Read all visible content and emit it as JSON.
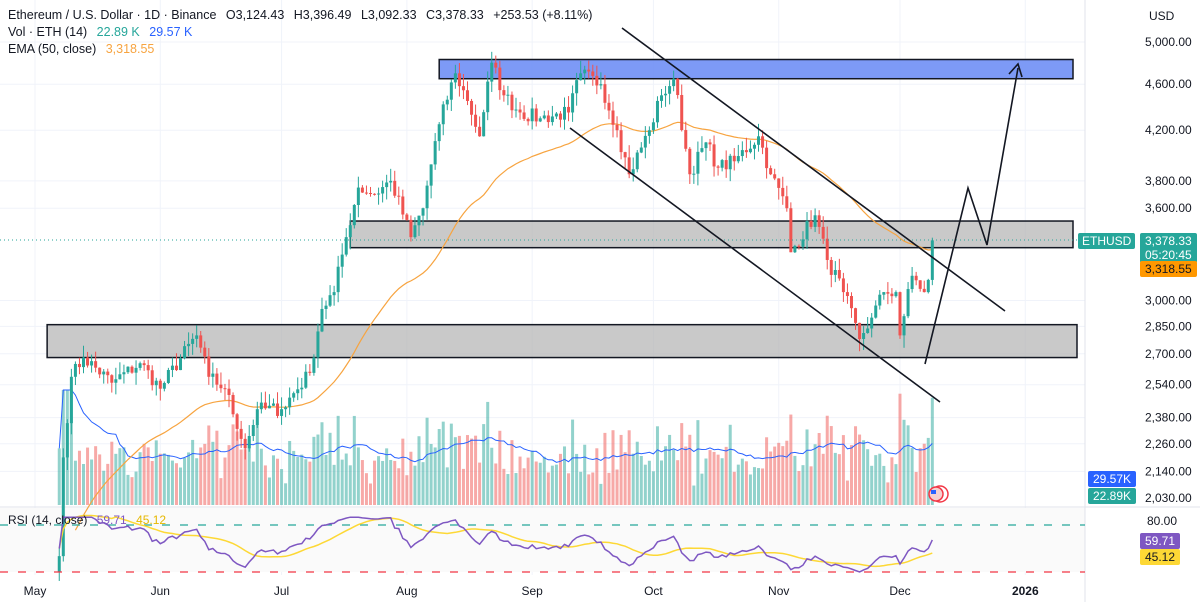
{
  "header": {
    "symbol_line": "Ethereum / U.S. Dollar · 1D · Binance",
    "open": "O3,124.43",
    "high": "H3,396.49",
    "low": "L3,092.33",
    "close": "C3,378.33",
    "change": "+253.53 (+8.11%)",
    "vol_label": "Vol · ETH (14)",
    "vol_value": "22.89 K",
    "vol_ma_value": "29.57 K",
    "ema_label": "EMA (50, close)",
    "ema_value": "3,318.55",
    "currency": "USD"
  },
  "price_tags": {
    "symbol": "ETHUSD",
    "last": "3,378.33",
    "countdown": "05:20:45",
    "ema": "3,318.55",
    "vol_ma": "29.57K",
    "vol": "22.89K",
    "rsi": "59.71",
    "rsi_ma": "45.12"
  },
  "rsi": {
    "label": "RSI (14, close)",
    "upper": "80.00",
    "upper_level": 80,
    "lower_level": 20
  },
  "colors": {
    "up": "#26a69a",
    "down": "#ef5350",
    "ema": "#f7a440",
    "vol_ma": "#2962ff",
    "rsi": "#7e57c2",
    "rsi_ma": "#fdd835",
    "zone_top": "#6f8ff5",
    "zone_gray": "#b2b2b2"
  },
  "chart_data": {
    "type": "candlestick",
    "scale": "log",
    "ylim": [
      2030,
      5000
    ],
    "y_ticks": [
      "5,000.00",
      "4,600.00",
      "4,200.00",
      "3,800.00",
      "3,600.00",
      "3,000.00",
      "2,850.00",
      "2,700.00",
      "2,540.00",
      "2,380.00",
      "2,260.00",
      "2,140.00",
      "2,030.00"
    ],
    "y_tick_values": [
      5000,
      4600,
      4200,
      3800,
      3600,
      3000,
      2850,
      2700,
      2540,
      2380,
      2260,
      2140,
      2030
    ],
    "x_ticks": [
      "May",
      "Jun",
      "Jul",
      "Aug",
      "Sep",
      "Oct",
      "Nov",
      "Dec",
      "2026"
    ],
    "x_tick_dates": [
      "2025-05-01",
      "2025-06-01",
      "2025-07-01",
      "2025-08-01",
      "2025-09-01",
      "2025-10-01",
      "2025-11-01",
      "2025-12-01",
      "2026-01-01"
    ],
    "grid": true,
    "close_anchors": [
      [
        "2025-05-07",
        1810
      ],
      [
        "2025-05-08",
        2200
      ],
      [
        "2025-05-10",
        2580
      ],
      [
        "2025-05-13",
        2680
      ],
      [
        "2025-05-20",
        2550
      ],
      [
        "2025-05-27",
        2650
      ],
      [
        "2025-06-01",
        2520
      ],
      [
        "2025-06-10",
        2800
      ],
      [
        "2025-06-13",
        2580
      ],
      [
        "2025-06-17",
        2520
      ],
      [
        "2025-06-22",
        2240
      ],
      [
        "2025-06-25",
        2420
      ],
      [
        "2025-07-01",
        2420
      ],
      [
        "2025-07-08",
        2600
      ],
      [
        "2025-07-11",
        2950
      ],
      [
        "2025-07-14",
        3050
      ],
      [
        "2025-07-17",
        3400
      ],
      [
        "2025-07-20",
        3750
      ],
      [
        "2025-07-24",
        3700
      ],
      [
        "2025-07-28",
        3800
      ],
      [
        "2025-08-02",
        3400
      ],
      [
        "2025-08-05",
        3600
      ],
      [
        "2025-08-09",
        4250
      ],
      [
        "2025-08-13",
        4700
      ],
      [
        "2025-08-16",
        4450
      ],
      [
        "2025-08-19",
        4150
      ],
      [
        "2025-08-22",
        4800
      ],
      [
        "2025-08-25",
        4500
      ],
      [
        "2025-08-29",
        4350
      ],
      [
        "2025-09-03",
        4300
      ],
      [
        "2025-09-10",
        4350
      ],
      [
        "2025-09-13",
        4700
      ],
      [
        "2025-09-18",
        4600
      ],
      [
        "2025-09-22",
        4200
      ],
      [
        "2025-09-25",
        3850
      ],
      [
        "2025-09-30",
        4200
      ],
      [
        "2025-10-03",
        4500
      ],
      [
        "2025-10-06",
        4650
      ],
      [
        "2025-10-10",
        3850
      ],
      [
        "2025-10-14",
        4100
      ],
      [
        "2025-10-17",
        3900
      ],
      [
        "2025-10-21",
        3950
      ],
      [
        "2025-10-27",
        4150
      ],
      [
        "2025-10-30",
        3850
      ],
      [
        "2025-11-03",
        3600
      ],
      [
        "2025-11-04",
        3300
      ],
      [
        "2025-11-10",
        3550
      ],
      [
        "2025-11-13",
        3250
      ],
      [
        "2025-11-17",
        3050
      ],
      [
        "2025-11-21",
        2780
      ],
      [
        "2025-11-24",
        2900
      ],
      [
        "2025-11-27",
        3050
      ],
      [
        "2025-11-30",
        3050
      ],
      [
        "2025-12-01",
        2800
      ],
      [
        "2025-12-04",
        3150
      ],
      [
        "2025-12-07",
        3050
      ],
      [
        "2025-12-08",
        3124.43
      ],
      [
        "2025-12-09",
        3378.33
      ]
    ],
    "last_candle": {
      "open": 3124.43,
      "high": 3396.49,
      "low": 3092.33,
      "close": 3378.33
    },
    "ema_period": 50,
    "rsi_period": 14,
    "zones": [
      {
        "name": "resistance-top",
        "from": 4650,
        "to": 4830,
        "start": "2025-08-09"
      },
      {
        "name": "mid-zone",
        "from": 3330,
        "to": 3510,
        "start": "2025-07-18"
      },
      {
        "name": "support-zone",
        "from": 2680,
        "to": 2860,
        "start": "2025-05-04"
      }
    ]
  }
}
